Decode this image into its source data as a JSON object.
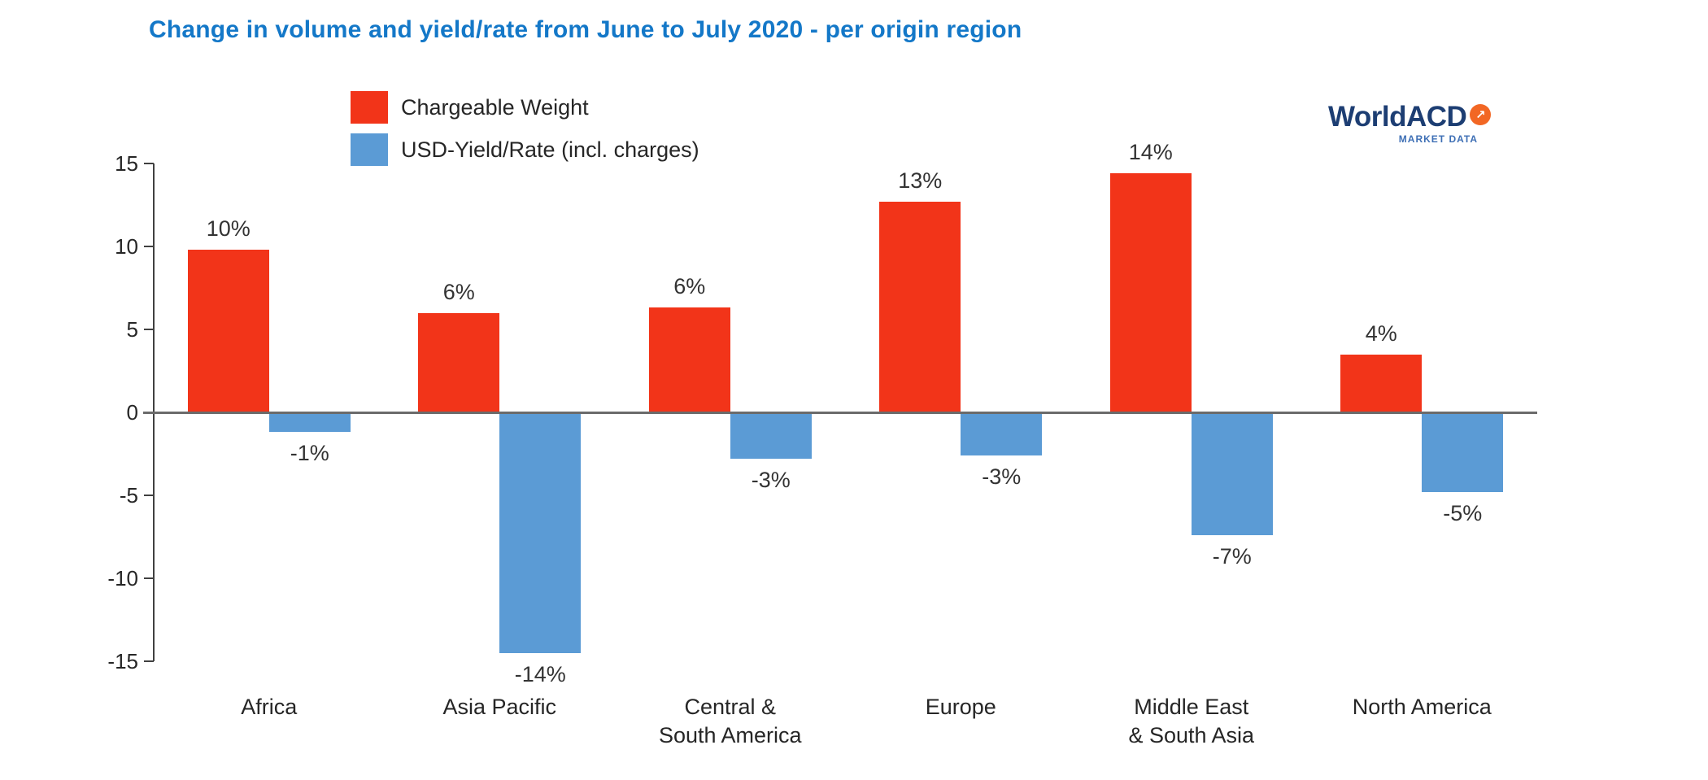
{
  "title": "Change in volume and yield/rate from June to July 2020 - per origin region",
  "logo": {
    "brand": "WorldACD",
    "tagline": "MARKET DATA",
    "arrow_icon": "arrow-up-right"
  },
  "colors": {
    "chargeable_weight": "#F23419",
    "usd_yield": "#5B9BD5",
    "title_blue": "#1478C8",
    "logo_navy": "#1D3E73",
    "logo_orange": "#F26724",
    "tagline_blue": "#3E6FB5",
    "axis_gray": "#404040",
    "zero_line_gray": "#6B6B6B",
    "label_text": "#333333"
  },
  "chart_data": {
    "type": "bar",
    "title": "Change in volume and yield/rate from June to July 2020 - per origin region",
    "categories": [
      "Africa",
      "Asia Pacific",
      "Central &\nSouth America",
      "Europe",
      "Middle East\n& South Asia",
      "North America"
    ],
    "series": [
      {
        "name": "Chargeable Weight",
        "color_key": "chargeable_weight",
        "values": [
          9.8,
          6.0,
          6.3,
          12.7,
          14.4,
          3.5
        ],
        "labels": [
          "10%",
          "6%",
          "6%",
          "13%",
          "14%",
          "4%"
        ]
      },
      {
        "name": "USD-Yield/Rate (incl. charges)",
        "color_key": "usd_yield",
        "values": [
          -1.2,
          -14.5,
          -2.8,
          -2.6,
          -7.4,
          -4.8
        ],
        "labels": [
          "-1%",
          "-14%",
          "-3%",
          "-3%",
          "-7%",
          "-5%"
        ]
      }
    ],
    "xlabel": "",
    "ylabel": "",
    "ylim": [
      -15,
      15
    ],
    "yticks": [
      15,
      10,
      5,
      0,
      -5,
      -10,
      -15
    ],
    "grid": false,
    "legend_position": "top-left-inside",
    "units": "percent"
  }
}
